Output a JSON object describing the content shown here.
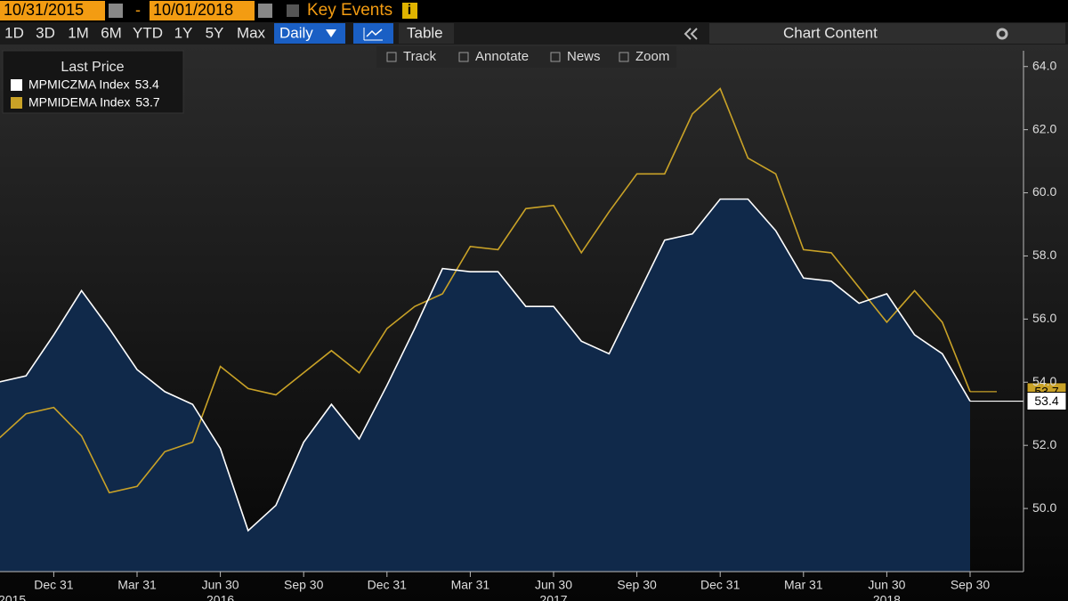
{
  "toolbar": {
    "start_date": "10/31/2015",
    "separator": "-",
    "end_date": "10/01/2018",
    "key_events": "Key Events",
    "ranges": [
      "1D",
      "3D",
      "1M",
      "6M",
      "YTD",
      "1Y",
      "5Y",
      "Max"
    ],
    "frequency": "Daily",
    "table": "Table",
    "chart_content": "Chart Content",
    "tools": [
      "Track",
      "Annotate",
      "News",
      "Zoom"
    ]
  },
  "chart_data": {
    "type": "line",
    "legend_title": "Last Price",
    "legend": "upper left",
    "categories": [
      null,
      null,
      "Dec 31",
      null,
      null,
      "Mar 31",
      null,
      null,
      "Jun 30",
      null,
      null,
      "Sep 30",
      null,
      null,
      "Dec 31",
      null,
      null,
      "Mar 31",
      null,
      null,
      "Jun 30",
      null,
      null,
      "Sep 30",
      null,
      null,
      "Dec 31",
      null,
      null,
      "Mar 31",
      null,
      null,
      "Jun 30",
      null,
      null,
      "Sep 30"
    ],
    "year_labels": [
      "2015",
      "2016",
      "2017",
      "2018"
    ],
    "series": [
      {
        "name": "MPMICZMA Index",
        "color": "#ffffff",
        "fill": "#10294a",
        "values": [
          54.0,
          54.2,
          55.5,
          56.9,
          55.7,
          54.4,
          53.7,
          53.3,
          51.9,
          49.3,
          50.1,
          52.1,
          53.3,
          52.2,
          53.9,
          55.7,
          57.6,
          57.5,
          57.5,
          56.4,
          56.4,
          55.3,
          54.9,
          56.7,
          58.5,
          58.7,
          59.8,
          59.8,
          58.8,
          57.3,
          57.2,
          56.5,
          56.8,
          55.5,
          54.9,
          53.4
        ]
      },
      {
        "name": "MPMIDEMA Index",
        "color": "#c9a227",
        "values": [
          52.2,
          53.0,
          53.2,
          52.3,
          50.5,
          50.7,
          51.8,
          52.1,
          54.5,
          53.8,
          53.6,
          54.3,
          55.0,
          54.3,
          55.7,
          56.4,
          56.8,
          58.3,
          58.2,
          59.5,
          59.6,
          58.1,
          59.4,
          60.6,
          60.6,
          62.5,
          63.3,
          61.1,
          60.6,
          58.2,
          58.1,
          57.0,
          55.9,
          56.9,
          55.9,
          53.7
        ]
      }
    ],
    "ylim": [
      48,
      64.5
    ],
    "yticks": [
      {
        "value": 50,
        "label": "50.0"
      },
      {
        "value": 52,
        "label": "52.0"
      },
      {
        "value": 54,
        "label": "54.0"
      },
      {
        "value": 56,
        "label": "56.0"
      },
      {
        "value": 58,
        "label": "58.0"
      },
      {
        "value": 60,
        "label": "60.0"
      },
      {
        "value": 62,
        "label": "62.0"
      },
      {
        "value": 64,
        "label": "64.0"
      }
    ]
  }
}
